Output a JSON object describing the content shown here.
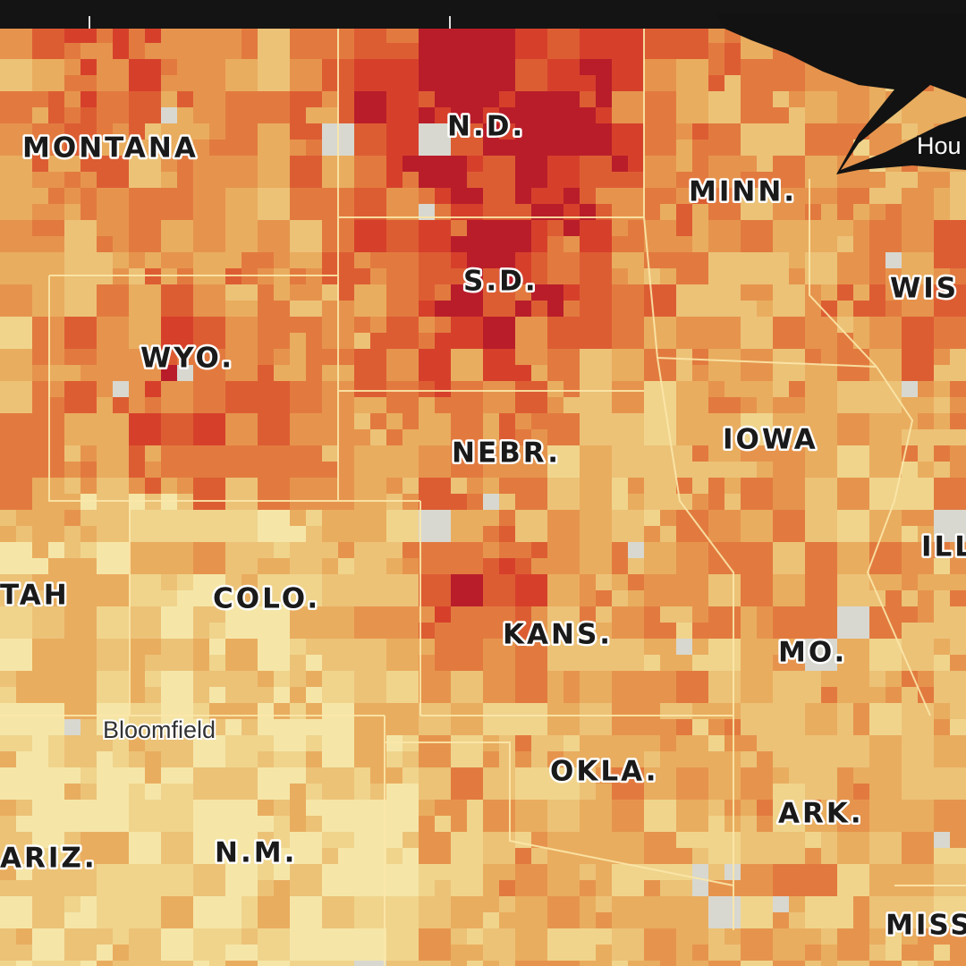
{
  "state_labels": [
    "MONTANA",
    "N.D.",
    "MINN.",
    "WIS",
    "S.D.",
    "WYO.",
    "NEBR.",
    "IOWA",
    "ILL",
    "TAH",
    "COLO.",
    "KANS.",
    "MO.",
    "OKLA.",
    "ARK.",
    "ARIZ.",
    "N.M.",
    "MISS"
  ],
  "place_labels": [
    "Bloomfield",
    "Hou"
  ]
}
